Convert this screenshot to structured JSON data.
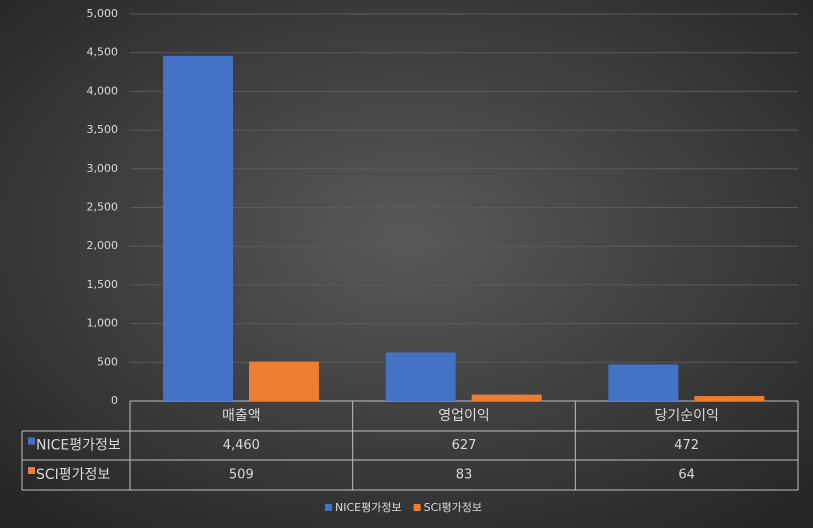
{
  "chart_data": {
    "type": "bar",
    "categories": [
      "매출액",
      "영업이익",
      "당기순이익"
    ],
    "series": [
      {
        "name": "NICE평가정보",
        "color": "#4472c4",
        "values": [
          4460,
          627,
          472
        ],
        "value_labels": [
          "4,460",
          "627",
          "472"
        ]
      },
      {
        "name": "SCI평가정보",
        "color": "#ed7d31",
        "values": [
          509,
          83,
          64
        ],
        "value_labels": [
          "509",
          "83",
          "64"
        ]
      }
    ],
    "ylim": [
      0,
      5000
    ],
    "yticks": [
      0,
      500,
      {
        "value": 1000,
        "label": "1,000"
      },
      {
        "value": 1500,
        "label": "1,500"
      },
      {
        "value": 2000,
        "label": "2,000"
      },
      {
        "value": 2500,
        "label": "2,500"
      },
      {
        "value": 3000,
        "label": "3,000"
      },
      {
        "value": 3500,
        "label": "3,500"
      },
      {
        "value": 4000,
        "label": "4,000"
      },
      {
        "value": 4500,
        "label": "4,500"
      },
      {
        "value": 5000,
        "label": "5,000"
      }
    ],
    "grid": true,
    "legend": "bottom"
  }
}
